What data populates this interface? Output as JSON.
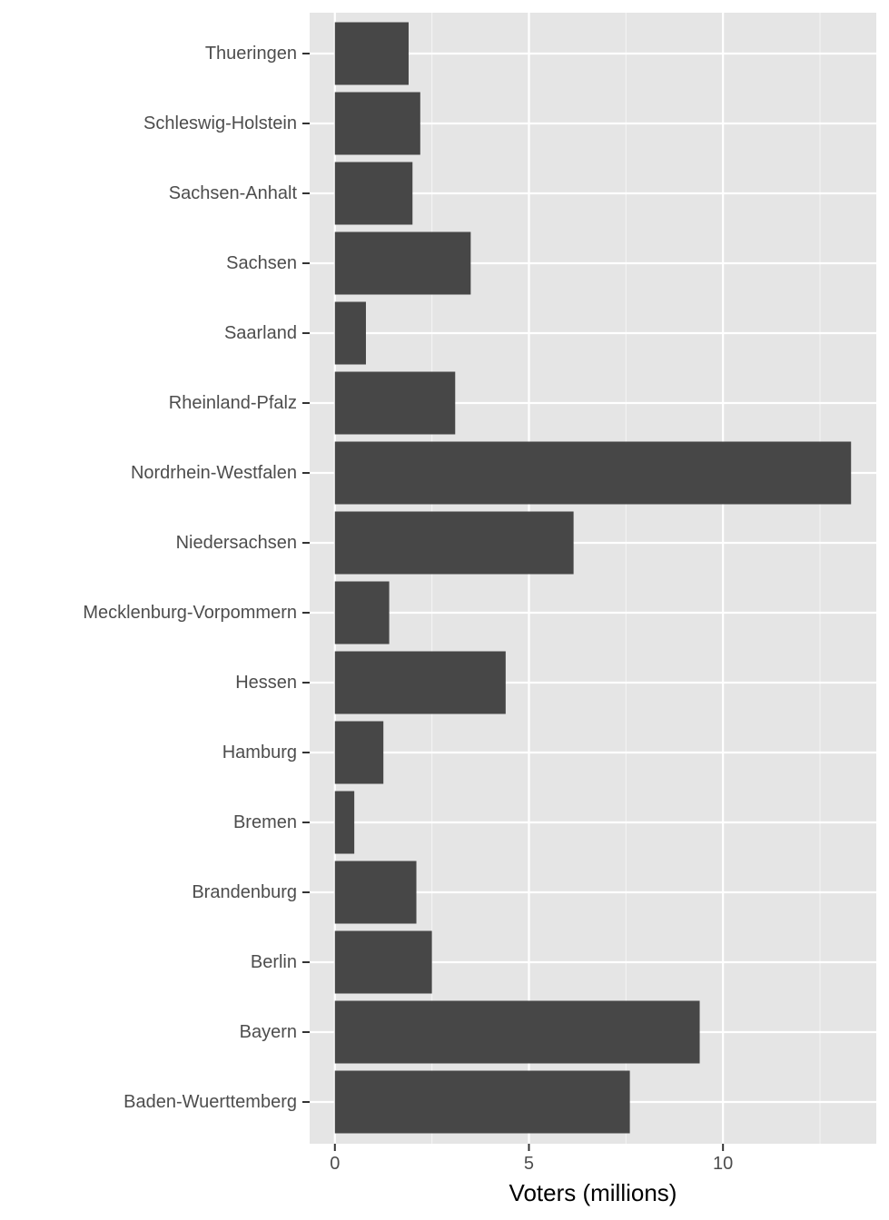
{
  "chart_data": {
    "type": "bar",
    "orientation": "horizontal",
    "categories": [
      "Baden-Wuerttemberg",
      "Bayern",
      "Berlin",
      "Brandenburg",
      "Bremen",
      "Hamburg",
      "Hessen",
      "Mecklenburg-Vorpommern",
      "Niedersachsen",
      "Nordrhein-Westfalen",
      "Rheinland-Pfalz",
      "Saarland",
      "Sachsen",
      "Sachsen-Anhalt",
      "Schleswig-Holstein",
      "Thueringen"
    ],
    "values": [
      7.6,
      9.4,
      2.5,
      2.1,
      0.5,
      1.25,
      4.4,
      1.4,
      6.15,
      13.3,
      3.1,
      0.8,
      3.5,
      2.0,
      2.2,
      1.9
    ],
    "title": "",
    "xlabel": "Voters (millions)",
    "ylabel": "",
    "xlim": [
      -0.65,
      13.95
    ],
    "xticks": [
      0,
      5,
      10
    ],
    "xtick_labels": [
      "0",
      "5",
      "10"
    ],
    "grid": true,
    "colors": {
      "panel_background": "#e5e5e5",
      "grid_major": "#ffffff",
      "grid_minor": "#f2f2f2",
      "bar_fill": "#474747",
      "tick_text": "#4d4d4d",
      "tick_mark": "#333333",
      "axis_title": "#000000"
    }
  }
}
